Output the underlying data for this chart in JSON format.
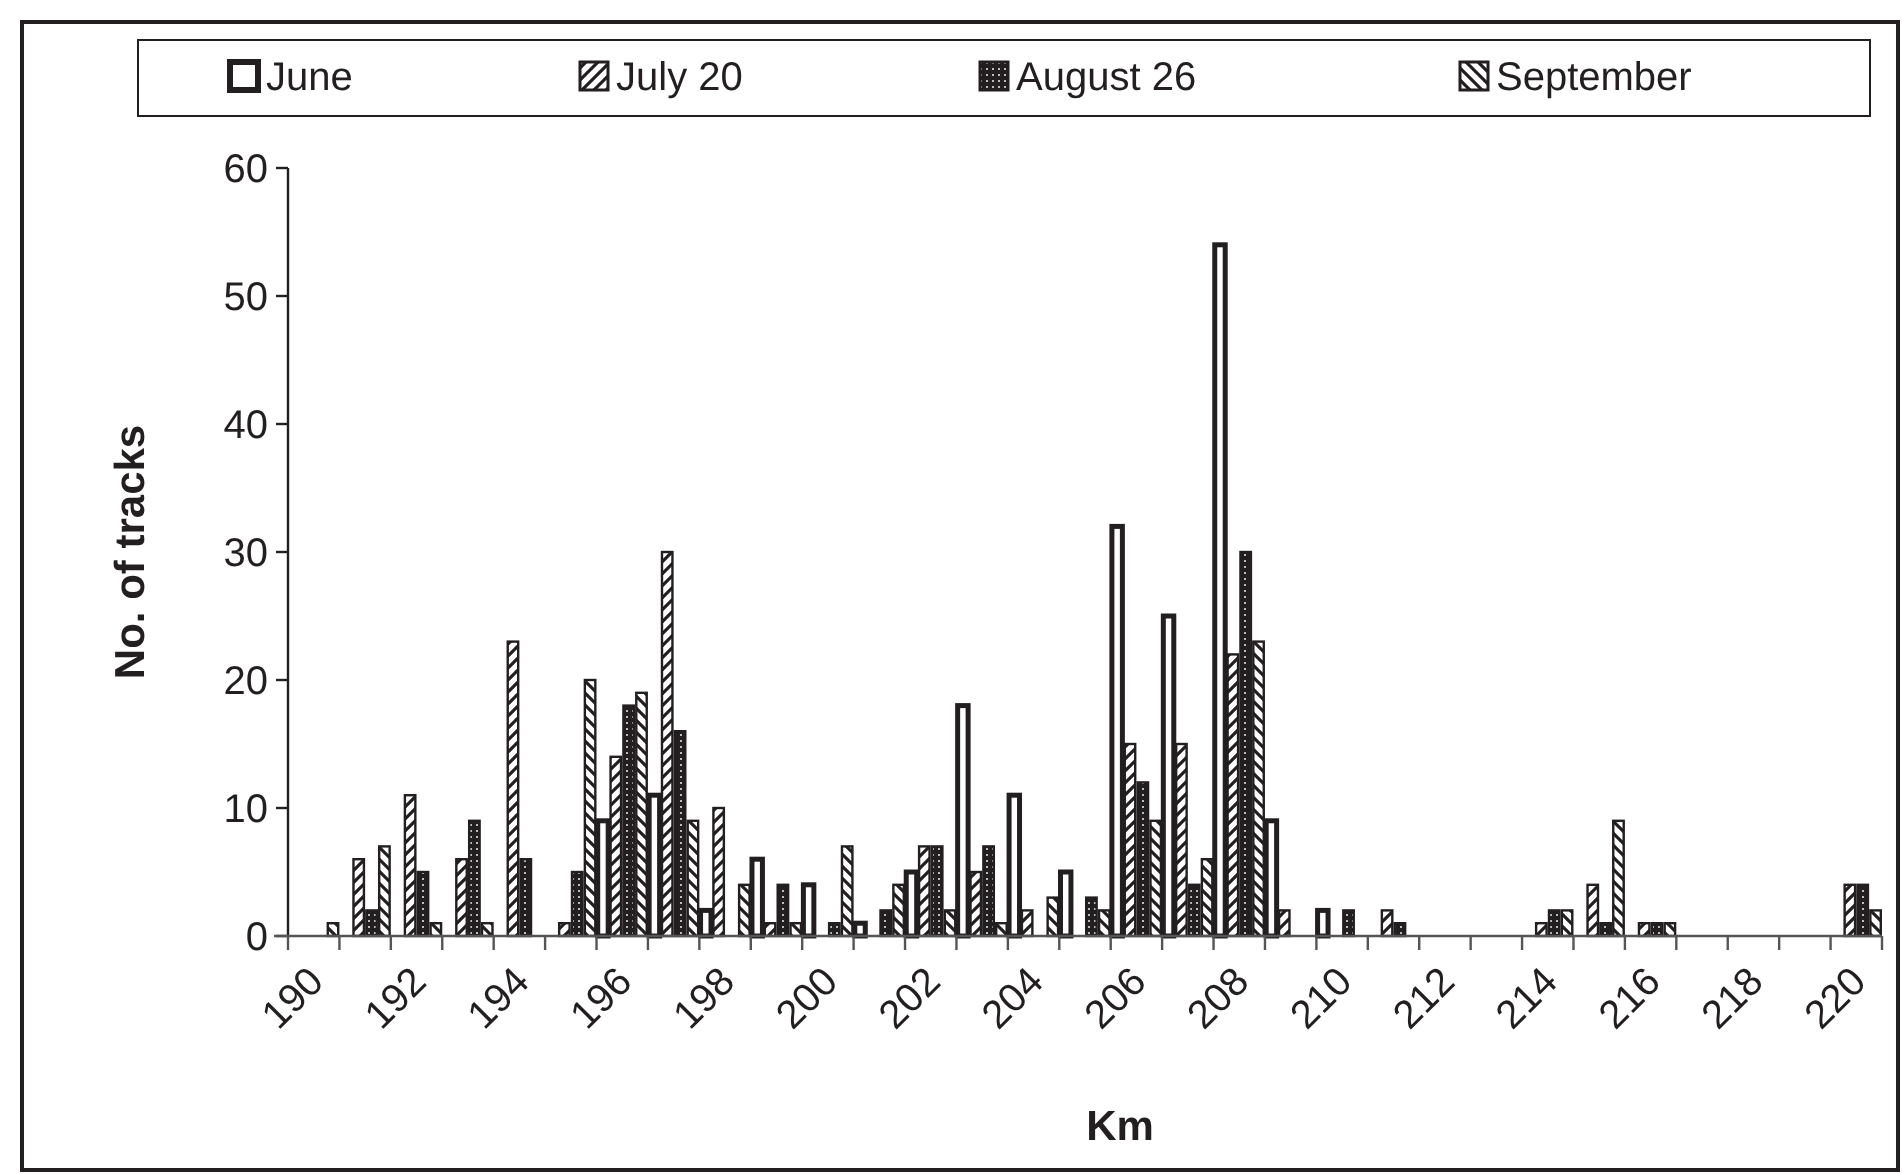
{
  "chart_data": {
    "type": "bar",
    "xlabel": "Km",
    "ylabel": "No. of tracks",
    "categories": [
      "190",
      null,
      "192",
      null,
      "194",
      null,
      "196",
      null,
      "198",
      null,
      "200",
      null,
      "202",
      null,
      "204",
      null,
      "206",
      null,
      "208",
      null,
      "210",
      null,
      "212",
      null,
      "214",
      null,
      "216",
      null,
      "218",
      null,
      "220"
    ],
    "series": [
      {
        "name": "June",
        "color": "#231f20",
        "values": [
          0,
          0,
          0,
          0,
          0,
          0,
          9,
          11,
          2,
          6,
          4,
          1,
          5,
          18,
          11,
          5,
          32,
          25,
          54,
          9,
          2,
          0,
          0,
          0,
          0,
          0,
          0,
          0,
          0,
          0,
          0
        ]
      },
      {
        "name": "July 20",
        "color": "#231f20",
        "values": [
          0,
          6,
          11,
          6,
          23,
          1,
          14,
          30,
          10,
          1,
          0,
          0,
          7,
          5,
          2,
          0,
          15,
          15,
          22,
          2,
          0,
          2,
          0,
          0,
          1,
          4,
          1,
          0,
          0,
          0,
          4
        ]
      },
      {
        "name": "August 26",
        "color": "#231f20",
        "values": [
          0,
          2,
          5,
          9,
          6,
          5,
          18,
          16,
          0,
          4,
          1,
          2,
          7,
          7,
          0,
          3,
          12,
          4,
          30,
          0,
          2,
          1,
          0,
          0,
          2,
          1,
          1,
          0,
          0,
          0,
          4
        ]
      },
      {
        "name": "September",
        "color": "#231f20",
        "values": [
          1,
          7,
          1,
          1,
          0,
          20,
          19,
          9,
          4,
          1,
          7,
          4,
          2,
          1,
          3,
          2,
          9,
          6,
          23,
          0,
          0,
          0,
          0,
          0,
          2,
          9,
          1,
          0,
          0,
          0,
          2
        ]
      }
    ],
    "ylim": [
      0,
      60
    ],
    "yticks": [
      0,
      10,
      20,
      30,
      40,
      50,
      60
    ],
    "grid": false,
    "legend": "top"
  }
}
